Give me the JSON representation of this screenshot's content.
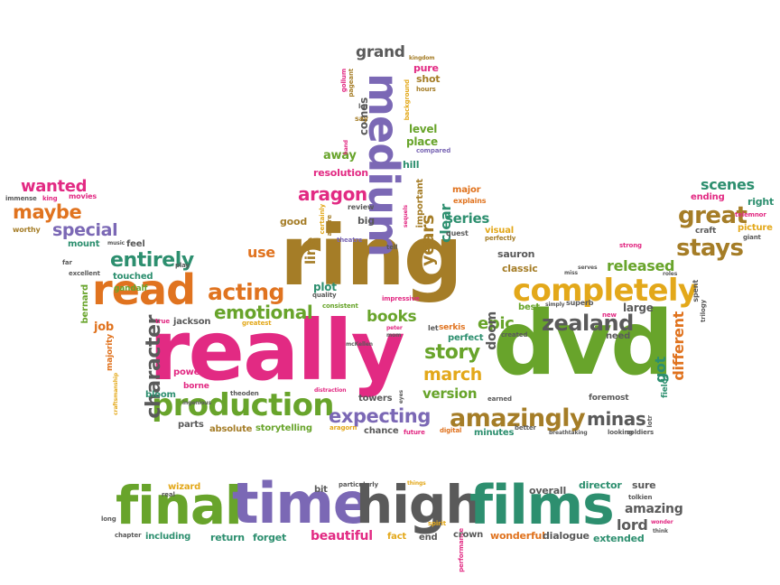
{
  "palette": {
    "pink": "#e22a83",
    "green": "#68a42b",
    "gold": "#a57d27",
    "orange": "#e0731f",
    "purple": "#7b68b5",
    "teal": "#2d8f6f",
    "gray": "#5a5a5a",
    "yellow": "#e3a81a",
    "red": "#c4352a"
  },
  "words": [
    "really",
    "dvd",
    "ring",
    "medium",
    "final",
    "time",
    "high",
    "films",
    "read",
    "completely",
    "production",
    "amazingly",
    "acting",
    "entirely",
    "stays",
    "great",
    "aragon",
    "emotional",
    "character",
    "minas",
    "expecting",
    "story",
    "march",
    "epic",
    "zealand",
    "books",
    "version",
    "different",
    "maybe",
    "wanted",
    "special",
    "scenes",
    "released",
    "grand",
    "series",
    "years",
    "clear",
    "doom",
    "line",
    "use",
    "got",
    "level",
    "place",
    "hill",
    "away",
    "resolution",
    "pure",
    "shot",
    "comes",
    "lot",
    "say",
    "major",
    "explains",
    "compared",
    "gollum",
    "pageant",
    "background",
    "hours",
    "kingdom",
    "important",
    "sequels",
    "quest",
    "visual",
    "perfectly",
    "review",
    "certainly",
    "aware",
    "big",
    "good",
    "theatre",
    "tell",
    "classic",
    "sauron",
    "mount",
    "feel",
    "music",
    "worthy",
    "far",
    "excellent",
    "play",
    "touched",
    "gandalf",
    "bernard",
    "job",
    "majority",
    "jackson",
    "true",
    "greatest",
    "quality",
    "consistent",
    "impressive",
    "let",
    "serkis",
    "best",
    "perfect",
    "created",
    "superb",
    "large",
    "need",
    "miss",
    "serves",
    "ending",
    "right",
    "craft",
    "picture",
    "giant",
    "spent",
    "roles",
    "trilogy",
    "fields",
    "foremost",
    "lotr",
    "looking",
    "soldiers",
    "breathtaking",
    "better",
    "earned",
    "minutes",
    "digital",
    "future",
    "chance",
    "towers",
    "eyes",
    "distraction",
    "aragorn",
    "storytelling",
    "absolute",
    "parts",
    "ingenious",
    "theoden",
    "bloom",
    "borne",
    "power",
    "mcKellen",
    "peter",
    "mom",
    "hand",
    "craftsmanship",
    "immense",
    "king",
    "movies",
    "particularly",
    "bit",
    "real",
    "wizard",
    "things",
    "long",
    "performance",
    "spirit",
    "overall",
    "director",
    "sure",
    "tolkien",
    "amazing",
    "lord",
    "wonder",
    "think",
    "chapter",
    "including",
    "return",
    "forget",
    "beautiful",
    "fact",
    "end",
    "crown",
    "wonderful",
    "dialogue",
    "extended",
    "telemnor",
    "strong",
    "plot",
    "simply",
    "new"
  ]
}
